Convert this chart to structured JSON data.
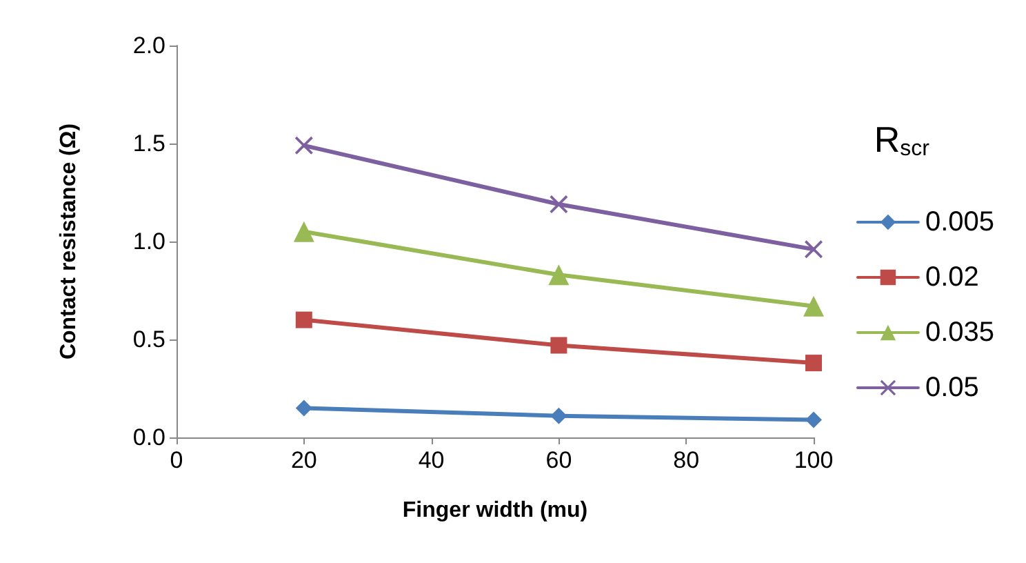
{
  "chart_data": {
    "type": "line",
    "xlabel": "Finger width (mu)",
    "ylabel": "Contact resistance (Ω)",
    "legend_title": "R$_{scr}$",
    "x": [
      20,
      60,
      100
    ],
    "series": [
      {
        "name": "0.005",
        "color": "#4a7ebb",
        "marker": "diamond",
        "values": [
          0.15,
          0.11,
          0.09
        ]
      },
      {
        "name": "0.02",
        "color": "#be4b48",
        "marker": "square",
        "values": [
          0.6,
          0.47,
          0.38
        ]
      },
      {
        "name": "0.035",
        "color": "#98b954",
        "marker": "triangle",
        "values": [
          1.05,
          0.83,
          0.67
        ]
      },
      {
        "name": "0.05",
        "color": "#7d60a0",
        "marker": "cross",
        "values": [
          1.49,
          1.19,
          0.96
        ]
      }
    ],
    "xlim": [
      0,
      100
    ],
    "xticks": [
      0,
      20,
      40,
      60,
      80,
      100
    ],
    "ylim": [
      0,
      2
    ],
    "yticks": [
      {
        "value": 0,
        "label": "0.0"
      },
      0.5,
      {
        "value": 1,
        "label": "1.0"
      },
      1.5,
      {
        "value": 2,
        "label": "2.0"
      }
    ],
    "grid": false,
    "legend": "right",
    "line_style": "solid"
  }
}
